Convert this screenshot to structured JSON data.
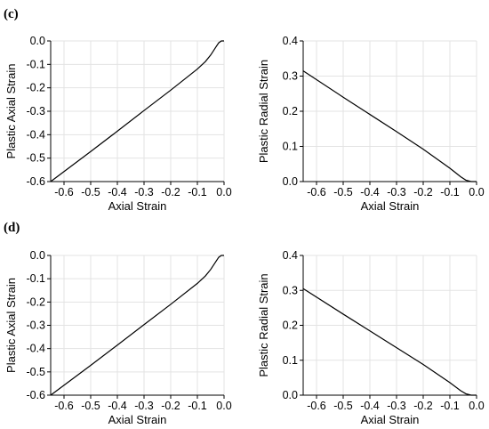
{
  "panel_labels": [
    "(c)",
    "(d)"
  ],
  "chart_data": [
    {
      "type": "line",
      "panel": "(c)",
      "xlabel": "Axial Strain",
      "ylabel": "Plastic Axial Strain",
      "xlim": [
        -0.65,
        0.0
      ],
      "ylim": [
        -0.6,
        0.0
      ],
      "xticks": [
        -0.6,
        -0.5,
        -0.4,
        -0.3,
        -0.2,
        -0.1,
        0.0
      ],
      "yticks": [
        0.0,
        -0.1,
        -0.2,
        -0.3,
        -0.4,
        -0.5,
        -0.6
      ],
      "grid": true,
      "series": [
        {
          "x": [
            -0.65,
            -0.5,
            -0.4,
            -0.3,
            -0.2,
            -0.1,
            -0.07,
            -0.05,
            -0.03,
            -0.02,
            -0.01,
            0.0
          ],
          "y": [
            -0.6,
            -0.472,
            -0.385,
            -0.297,
            -0.21,
            -0.12,
            -0.088,
            -0.06,
            -0.025,
            -0.008,
            0.0,
            0.0
          ]
        }
      ]
    },
    {
      "type": "line",
      "panel": "(c)",
      "xlabel": "Axial Strain",
      "ylabel": "Plastic Radial Strain",
      "xlim": [
        -0.65,
        0.0
      ],
      "ylim": [
        0.0,
        0.4
      ],
      "xticks": [
        -0.6,
        -0.5,
        -0.4,
        -0.3,
        -0.2,
        -0.1,
        0.0
      ],
      "yticks": [
        0.4,
        0.3,
        0.2,
        0.1,
        0.0
      ],
      "grid": true,
      "series": [
        {
          "x": [
            -0.65,
            -0.5,
            -0.4,
            -0.3,
            -0.2,
            -0.1,
            -0.06,
            -0.04,
            -0.02,
            0.0
          ],
          "y": [
            0.315,
            0.24,
            0.191,
            0.142,
            0.092,
            0.038,
            0.014,
            0.004,
            0.0,
            0.0
          ]
        }
      ]
    },
    {
      "type": "line",
      "panel": "(d)",
      "xlabel": "Axial Strain",
      "ylabel": "Plastic Axial Strain",
      "xlim": [
        -0.65,
        0.0
      ],
      "ylim": [
        -0.6,
        0.0
      ],
      "xticks": [
        -0.6,
        -0.5,
        -0.4,
        -0.3,
        -0.2,
        -0.1,
        0.0
      ],
      "yticks": [
        0.0,
        -0.1,
        -0.2,
        -0.3,
        -0.4,
        -0.5,
        -0.6
      ],
      "grid": true,
      "series": [
        {
          "x": [
            -0.65,
            -0.5,
            -0.4,
            -0.3,
            -0.2,
            -0.1,
            -0.07,
            -0.05,
            -0.03,
            -0.02,
            -0.01,
            0.0
          ],
          "y": [
            -0.6,
            -0.472,
            -0.385,
            -0.297,
            -0.21,
            -0.12,
            -0.088,
            -0.06,
            -0.025,
            -0.008,
            0.0,
            0.0
          ]
        }
      ]
    },
    {
      "type": "line",
      "panel": "(d)",
      "xlabel": "Axial Strain",
      "ylabel": "Plastic Radial Strain",
      "xlim": [
        -0.65,
        0.0
      ],
      "ylim": [
        0.0,
        0.4
      ],
      "xticks": [
        -0.6,
        -0.5,
        -0.4,
        -0.3,
        -0.2,
        -0.1,
        0.0
      ],
      "yticks": [
        0.4,
        0.3,
        0.2,
        0.1,
        0.0
      ],
      "grid": true,
      "series": [
        {
          "x": [
            -0.65,
            -0.5,
            -0.4,
            -0.3,
            -0.2,
            -0.1,
            -0.06,
            -0.04,
            -0.02,
            0.0
          ],
          "y": [
            0.305,
            0.232,
            0.184,
            0.136,
            0.088,
            0.036,
            0.013,
            0.004,
            0.0,
            0.0
          ]
        }
      ]
    }
  ]
}
